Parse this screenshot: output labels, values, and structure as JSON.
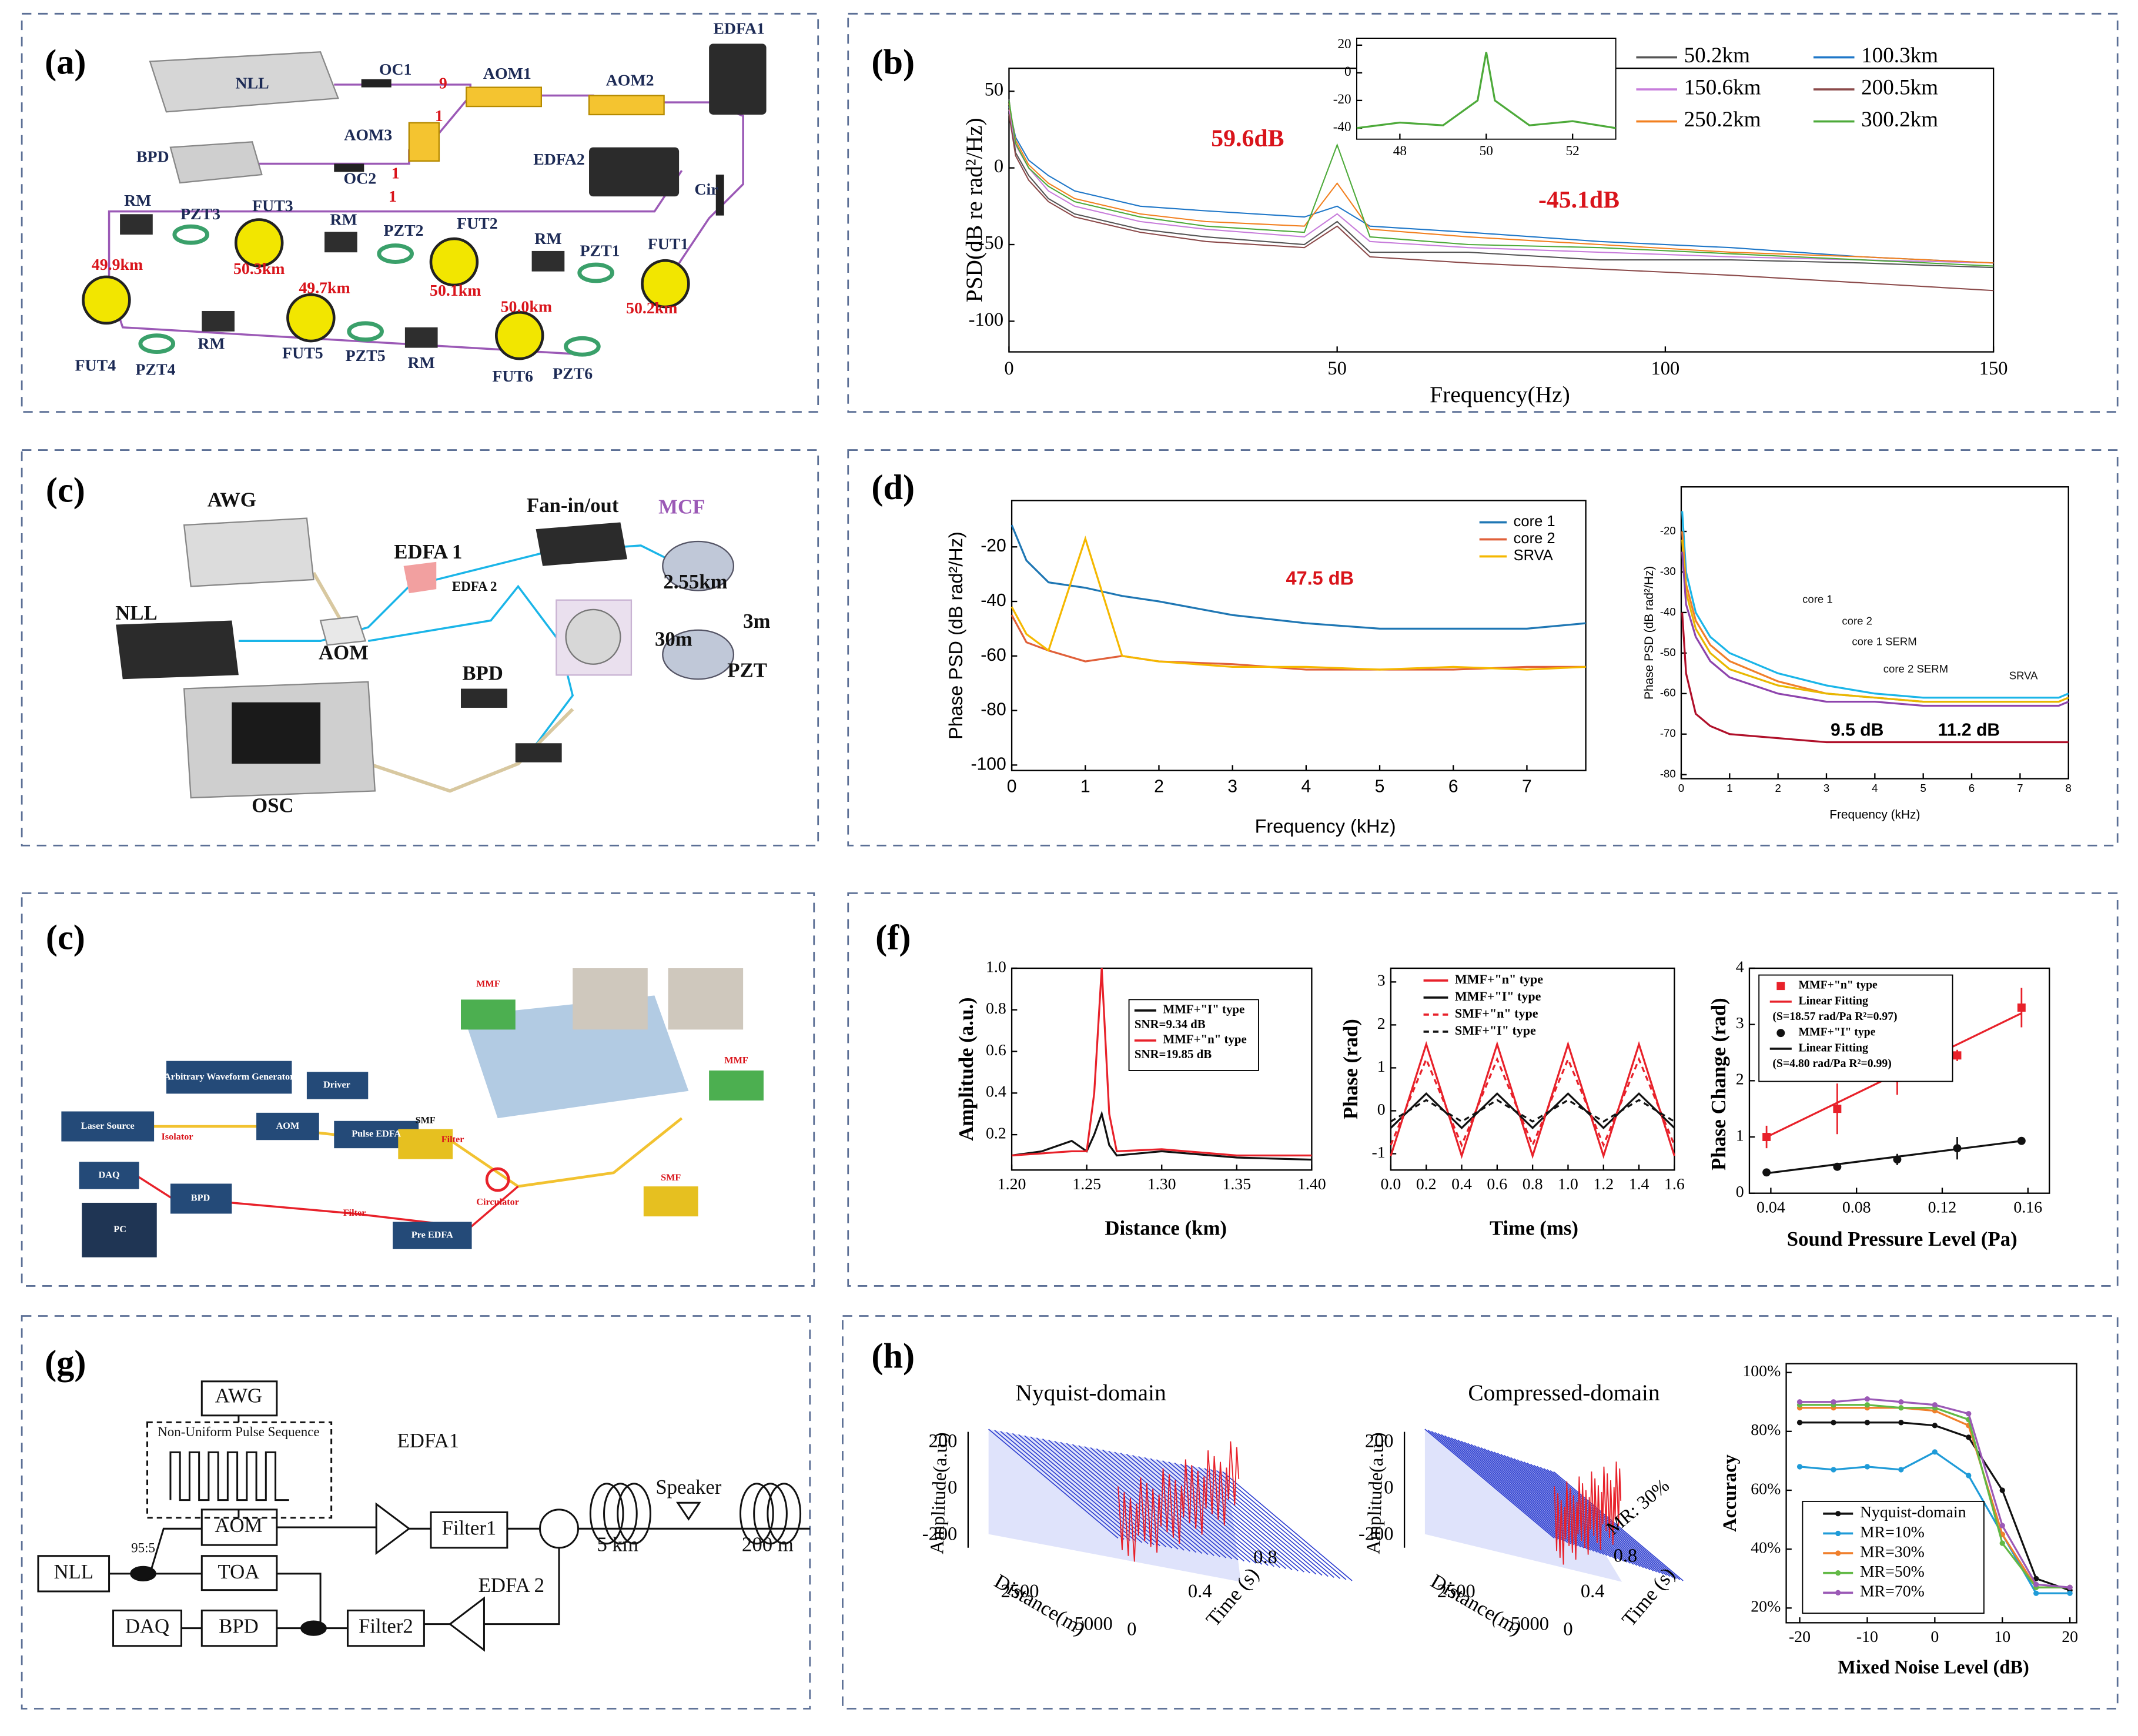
{
  "panel_labels": [
    "(a)",
    "(b)",
    "(c)",
    "(d)",
    "(c)",
    "(f)",
    "(g)",
    "(h)"
  ],
  "diagrams": [
    {
      "labels": [
        "NLL",
        "OC1",
        "9",
        "AOM1",
        "AOM2",
        "EDFA1",
        "AOM3",
        "1",
        "BPD",
        "OC2",
        "1",
        "1",
        "EDFA2",
        "Cir",
        "RM",
        "PZT3",
        "FUT3",
        "RM",
        "PZT2",
        "FUT2",
        "RM",
        "PZT1",
        "FUT1",
        "49.9km",
        "50.3km",
        "49.7km",
        "50.1km",
        "50.0km",
        "50.2km",
        "FUT4",
        "PZT4",
        "RM",
        "FUT5",
        "PZT5",
        "RM",
        "FUT6",
        "PZT6"
      ]
    },
    {
      "labels": [
        "AWG",
        "NLL",
        "EDFA 1",
        "EDFA 2",
        "Fan-in/out",
        "MCF",
        "2.55km",
        "30m",
        "3m",
        "PZT",
        "AOM",
        "BPD",
        "OSC"
      ]
    },
    {
      "labels": [
        "MMF",
        "SMF",
        "MMF",
        "SMF",
        "Arbitrary Waveform Generator",
        "Driver",
        "Laser Source",
        "Isolator",
        "AOM",
        "Pulse EDFA",
        "Filter",
        "DAQ",
        "BPD",
        "Circulator",
        "PC",
        "Filter",
        "Pre EDFA"
      ]
    },
    {
      "labels": [
        "AWG",
        "Non-Uniform Pulse Sequence",
        "AOM",
        "EDFA1",
        "Filter1",
        "95:5",
        "NLL",
        "TOA",
        "Speaker",
        "5 km",
        "200 m",
        "EDFA 2",
        "DAQ",
        "BPD",
        "Filter2"
      ]
    }
  ],
  "surfaces": [
    {
      "title": "Nyquist-domain",
      "zlabel": "Amplitude(a.u.)",
      "xlabel": "Distance(m)",
      "ylabel": "Time (s)",
      "zticks": [
        200,
        0,
        -200
      ],
      "xticks": [
        2500,
        5000
      ],
      "yticks": [
        0,
        0.4,
        0.8
      ]
    },
    {
      "title": "Compressed-domain",
      "zlabel": "Amplitude(a.u.)",
      "xlabel": "Distance(m)",
      "ylabel": "Time (s)",
      "zticks": [
        200,
        0,
        -200
      ],
      "xticks": [
        2500,
        5000
      ],
      "yticks": [
        0,
        0.4,
        0.8
      ],
      "annotation": "MR: 30%"
    }
  ],
  "chart_data": [
    {
      "type": "line",
      "xlabel": "Frequency(Hz)",
      "ylabel": "PSD(dB re rad²/Hz)",
      "xlim": [
        0,
        150
      ],
      "ylim": [
        -120,
        65
      ],
      "xticks": [
        0,
        50,
        100,
        150
      ],
      "yticks": [
        50,
        0,
        -50,
        -100
      ],
      "legend": "upper right",
      "annotations": [
        "59.6dB",
        "-45.1dB"
      ],
      "annotation_color": "#d9141b",
      "x": [
        0,
        1,
        3,
        6,
        10,
        20,
        30,
        45,
        50,
        55,
        70,
        90,
        110,
        130,
        150
      ],
      "series": [
        {
          "name": "50.2km",
          "color": "#555555",
          "values": [
            45,
            10,
            -5,
            -20,
            -30,
            -40,
            -45,
            -50,
            -35,
            -55,
            -55,
            -60,
            -60,
            -62,
            -65
          ]
        },
        {
          "name": "100.3km",
          "color": "#1f77c8",
          "values": [
            40,
            20,
            5,
            -5,
            -15,
            -25,
            -28,
            -32,
            -25,
            -38,
            -42,
            -48,
            -52,
            -58,
            -62
          ]
        },
        {
          "name": "150.6km",
          "color": "#c77ddb",
          "values": [
            38,
            15,
            0,
            -15,
            -25,
            -35,
            -40,
            -45,
            -30,
            -48,
            -52,
            -55,
            -58,
            -60,
            -62
          ]
        },
        {
          "name": "200.5km",
          "color": "#8b4a4a",
          "values": [
            35,
            8,
            -8,
            -22,
            -32,
            -42,
            -48,
            -52,
            -38,
            -58,
            -62,
            -66,
            -70,
            -75,
            -80
          ]
        },
        {
          "name": "250.2km",
          "color": "#f28020",
          "values": [
            42,
            18,
            2,
            -10,
            -20,
            -30,
            -35,
            -38,
            -10,
            -40,
            -45,
            -50,
            -55,
            -58,
            -62
          ]
        },
        {
          "name": "300.2km",
          "color": "#4daa3a",
          "values": [
            44,
            16,
            0,
            -12,
            -22,
            -32,
            -38,
            -42,
            15,
            -45,
            -50,
            -52,
            -56,
            -60,
            -64
          ]
        }
      ]
    },
    {
      "type": "line",
      "xlim": [
        47,
        53
      ],
      "ylim": [
        -48,
        25
      ],
      "xticks": [
        48,
        50,
        52
      ],
      "yticks": [
        20,
        0,
        -20,
        -40
      ],
      "x": [
        47,
        48,
        49,
        49.8,
        50,
        50.2,
        51,
        52,
        53
      ],
      "series": [
        {
          "color": "#4daa3a",
          "values": [
            -40,
            -36,
            -38,
            -20,
            15,
            -20,
            -38,
            -35,
            -40
          ]
        }
      ]
    },
    {
      "type": "line",
      "xlabel": "Frequency (kHz)",
      "ylabel": "Phase PSD (dB rad²/Hz)",
      "xlim": [
        0,
        7.8
      ],
      "ylim": [
        -102,
        -3
      ],
      "xticks": [
        0,
        1,
        2,
        3,
        4,
        5,
        6,
        7
      ],
      "yticks": [
        -20,
        -40,
        -60,
        -80,
        -100
      ],
      "legend": "upper right",
      "annotations": [
        "47.5 dB"
      ],
      "annotation_color": "#d9141b",
      "x": [
        0,
        0.2,
        0.5,
        1,
        1.5,
        2,
        3,
        4,
        5,
        6,
        7,
        7.8
      ],
      "series": [
        {
          "name": "core 1",
          "color": "#1f77b4",
          "values": [
            -12,
            -25,
            -33,
            -35,
            -38,
            -40,
            -45,
            -48,
            -50,
            -50,
            -50,
            -48
          ]
        },
        {
          "name": "core 2",
          "color": "#e0603a",
          "values": [
            -45,
            -55,
            -58,
            -62,
            -60,
            -62,
            -63,
            -65,
            -65,
            -65,
            -64,
            -64
          ]
        },
        {
          "name": "SRVA",
          "color": "#f5b800",
          "values": [
            -42,
            -52,
            -58,
            -17,
            -60,
            -62,
            -64,
            -64,
            -65,
            -64,
            -65,
            -64
          ]
        }
      ]
    },
    {
      "type": "line",
      "xlabel": "Frequency (kHz)",
      "ylabel": "Phase PSD (dB rad²/Hz)",
      "xlim": [
        0,
        8
      ],
      "ylim": [
        -81,
        -9
      ],
      "xticks": [
        0,
        1,
        2,
        3,
        4,
        5,
        6,
        7,
        8
      ],
      "yticks": [
        -20,
        -30,
        -40,
        -50,
        -60,
        -70,
        -80
      ],
      "annotations": [
        "9.5 dB",
        "11.2 dB"
      ],
      "x": [
        0.02,
        0.1,
        0.3,
        0.6,
        1,
        2,
        3,
        4,
        5,
        6,
        7,
        7.8,
        8
      ],
      "series": [
        {
          "name": "core 1",
          "color": "#1ab5e8",
          "values": [
            -15,
            -30,
            -40,
            -46,
            -50,
            -55,
            -58,
            -60,
            -61,
            -61,
            -61,
            -61,
            -60
          ]
        },
        {
          "name": "core 2",
          "color": "#f07f2b",
          "values": [
            -20,
            -33,
            -42,
            -48,
            -52,
            -57,
            -60,
            -61,
            -62,
            -62,
            -62,
            -62,
            -61
          ]
        },
        {
          "name": "core 1 SERM",
          "color": "#e8b800",
          "values": [
            -22,
            -35,
            -44,
            -50,
            -54,
            -58,
            -60,
            -61,
            -62,
            -62,
            -62,
            -62,
            -61
          ]
        },
        {
          "name": "core 2 SERM",
          "color": "#8e44ad",
          "values": [
            -25,
            -38,
            -46,
            -52,
            -56,
            -60,
            -62,
            -62,
            -63,
            -63,
            -63,
            -63,
            -62
          ]
        },
        {
          "name": "SRVA",
          "color": "#b0102a",
          "values": [
            -40,
            -55,
            -65,
            -68,
            -70,
            -71,
            -72,
            -72,
            -72,
            -72,
            -72,
            -72,
            -72
          ]
        }
      ]
    },
    {
      "type": "line",
      "xlabel": "Distance (km)",
      "ylabel": "Amplitude (a.u.)",
      "xlim": [
        1.2,
        1.4
      ],
      "ylim": [
        0.03,
        1.0
      ],
      "xticks": [
        {
          "value": 1.2,
          "label": "1.20"
        },
        {
          "value": 1.25,
          "label": "1.25"
        },
        {
          "value": 1.3,
          "label": "1.30"
        },
        {
          "value": 1.35,
          "label": "1.35"
        },
        {
          "value": 1.4,
          "label": "1.40"
        }
      ],
      "yticks": [
        0.2,
        0.4,
        0.6,
        0.8,
        {
          "value": 1,
          "label": "1.0"
        }
      ],
      "legend": "upper right",
      "x": [
        1.2,
        1.22,
        1.24,
        1.25,
        1.255,
        1.26,
        1.265,
        1.27,
        1.3,
        1.35,
        1.4
      ],
      "series": [
        {
          "name": "MMF+\"I\" type",
          "note": "SNR=9.34 dB",
          "color": "#111111",
          "values": [
            0.1,
            0.12,
            0.17,
            0.12,
            0.2,
            0.3,
            0.15,
            0.1,
            0.12,
            0.09,
            0.08
          ]
        },
        {
          "name": "MMF+\"n\" type",
          "note": "SNR=19.85 dB",
          "color": "#e8212a",
          "values": [
            0.1,
            0.11,
            0.12,
            0.12,
            0.4,
            1.0,
            0.3,
            0.12,
            0.13,
            0.1,
            0.1
          ]
        }
      ]
    },
    {
      "type": "line",
      "xlabel": "Time (ms)",
      "ylabel": "Phase (rad)",
      "xlim": [
        0,
        1.6
      ],
      "ylim": [
        -1.38,
        3.32
      ],
      "xticks": [
        {
          "value": 0,
          "label": "0.0"
        },
        0.2,
        0.4,
        0.6,
        0.8,
        {
          "value": 1,
          "label": "1.0"
        },
        1.2,
        1.4,
        1.6
      ],
      "yticks": [
        3,
        2,
        1,
        0,
        -1
      ],
      "legend": "upper left",
      "x": [
        0,
        0.1,
        0.2,
        0.3,
        0.4,
        0.5,
        0.6,
        0.7,
        0.8,
        0.9,
        1.0,
        1.1,
        1.2,
        1.3,
        1.4,
        1.5,
        1.6
      ],
      "series": [
        {
          "name": "MMF+\"n\" type",
          "color": "#e8212a",
          "values": [
            -1.05,
            0.25,
            1.55,
            0.25,
            -1.05,
            0.25,
            1.55,
            0.25,
            -1.05,
            0.25,
            1.55,
            0.25,
            -1.05,
            0.25,
            1.55,
            0.25,
            -1.05
          ]
        },
        {
          "name": "MMF+\"I\" type",
          "color": "#111111",
          "values": [
            -0.4,
            0,
            0.4,
            0,
            -0.4,
            0,
            0.4,
            0,
            -0.4,
            0,
            0.4,
            0,
            -0.4,
            0,
            0.4,
            0,
            -0.4
          ]
        },
        {
          "name": "SMF+\"n\" type",
          "color": "#e8212a",
          "dash": true,
          "values": [
            -0.8,
            0.2,
            1.2,
            0.2,
            -0.8,
            0.2,
            1.2,
            0.2,
            -0.8,
            0.2,
            1.2,
            0.2,
            -0.8,
            0.2,
            1.2,
            0.2,
            -0.8
          ]
        },
        {
          "name": "SMF+\"I\" type",
          "color": "#111111",
          "dash": true,
          "values": [
            -0.25,
            0,
            0.25,
            0,
            -0.25,
            0,
            0.25,
            0,
            -0.25,
            0,
            0.25,
            0,
            -0.25,
            0,
            0.25,
            0,
            -0.25
          ]
        }
      ]
    },
    {
      "type": "scatter",
      "xlabel": "Sound Pressure Level (Pa)",
      "ylabel": "Phase Change (rad)",
      "xlim": [
        0.03,
        0.17
      ],
      "ylim": [
        0,
        4
      ],
      "xticks": [
        0.04,
        0.08,
        0.12,
        0.16
      ],
      "yticks": [
        0,
        1,
        2,
        3,
        4
      ],
      "legend": "upper left",
      "series": [
        {
          "name": "MMF+\"n\" type",
          "color": "#e8212a",
          "marker": "square",
          "x": [
            0.038,
            0.071,
            0.099,
            0.127,
            0.157
          ],
          "values": [
            1.0,
            1.5,
            2.05,
            2.45,
            3.3
          ],
          "errors": [
            0.2,
            0.45,
            0.3,
            0.1,
            0.35
          ]
        },
        {
          "name": "Linear Fitting",
          "note": "(S=18.57 rad/Pa R²=0.97)",
          "type": "line",
          "color": "#e8212a",
          "x": [
            0.037,
            0.157
          ],
          "values": [
            0.98,
            3.2
          ]
        },
        {
          "name": "MMF+\"I\" type",
          "color": "#111111",
          "marker": "circle",
          "x": [
            0.038,
            0.071,
            0.099,
            0.127,
            0.157
          ],
          "values": [
            0.37,
            0.47,
            0.6,
            0.8,
            0.93
          ],
          "errors": [
            0.03,
            0.05,
            0.1,
            0.2,
            0.05
          ]
        },
        {
          "name": "Linear Fitting",
          "note": "(S=4.80 rad/Pa R²=0.99)",
          "type": "line",
          "color": "#111111",
          "x": [
            0.037,
            0.157
          ],
          "values": [
            0.35,
            0.93
          ]
        }
      ]
    },
    {
      "type": "line",
      "xlabel": "Mixed Noise Level (dB)",
      "ylabel": "Accuracy",
      "marker": "circle",
      "xlim": [
        -22,
        21
      ],
      "ylim": [
        15,
        103
      ],
      "xticks": [
        -20,
        -10,
        0,
        10,
        20
      ],
      "yticks": [
        {
          "value": 20,
          "label": "20%"
        },
        {
          "value": 40,
          "label": "40%"
        },
        {
          "value": 60,
          "label": "60%"
        },
        {
          "value": 80,
          "label": "80%"
        },
        {
          "value": 100,
          "label": "100%"
        }
      ],
      "legend": "lower left",
      "x": [
        -20,
        -15,
        -10,
        -5,
        0,
        5,
        10,
        15,
        20
      ],
      "series": [
        {
          "name": "Nyquist-domain",
          "color": "#111111",
          "values": [
            83,
            83,
            83,
            83,
            82,
            78,
            60,
            30,
            26
          ]
        },
        {
          "name": "MR=10%",
          "color": "#1f9bd8",
          "values": [
            68,
            67,
            68,
            67,
            73,
            65,
            45,
            25,
            25
          ]
        },
        {
          "name": "MR=30%",
          "color": "#f07f2b",
          "values": [
            88,
            88,
            88,
            88,
            87,
            82,
            45,
            27,
            27
          ]
        },
        {
          "name": "MR=50%",
          "color": "#62b945",
          "values": [
            89,
            89,
            89,
            88,
            88,
            84,
            42,
            27,
            27
          ]
        },
        {
          "name": "MR=70%",
          "color": "#9b59b6",
          "values": [
            90,
            90,
            91,
            90,
            89,
            86,
            48,
            28,
            27
          ]
        }
      ]
    }
  ]
}
